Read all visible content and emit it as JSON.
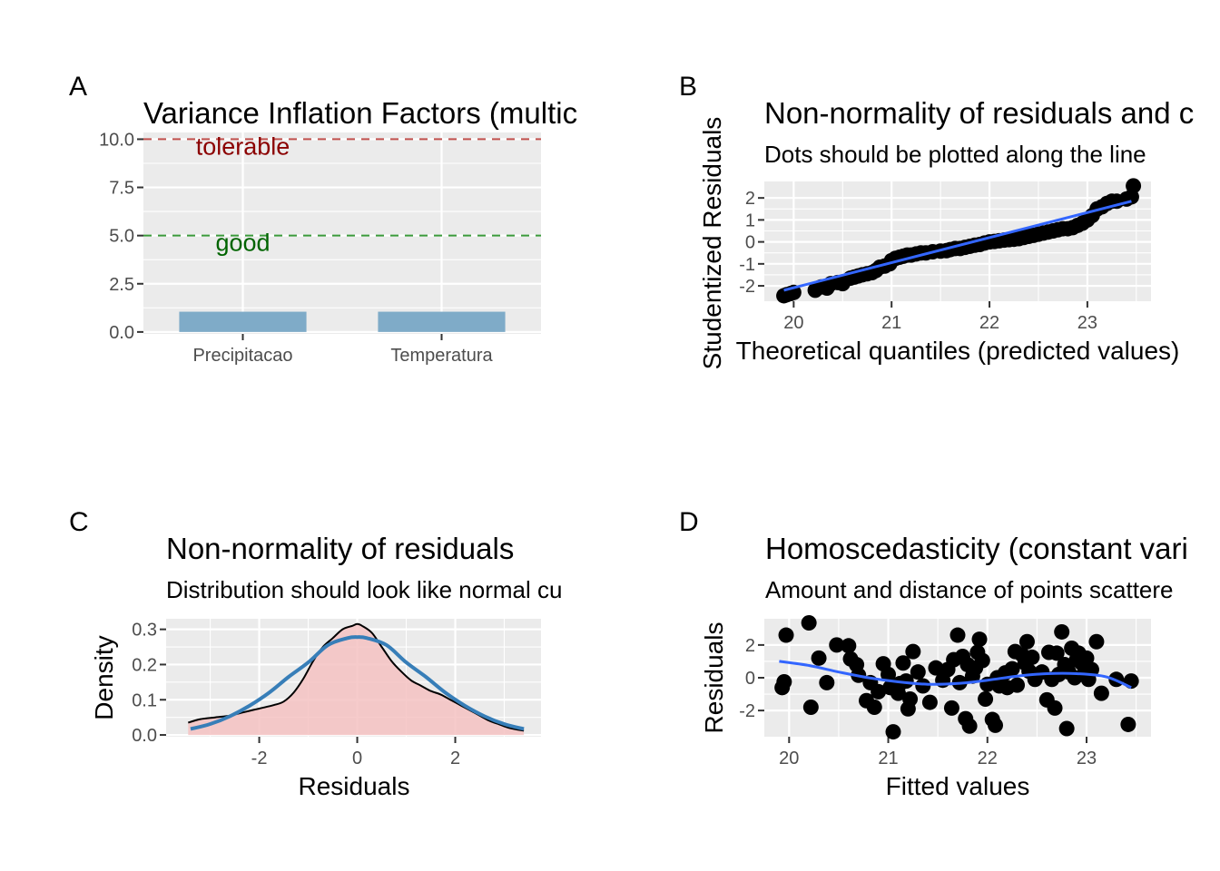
{
  "chart_data": [
    {
      "tag": "A",
      "type": "bar",
      "title": "Variance Inflation Factors (multic",
      "categories": [
        "Precipitacao",
        "Temperatura"
      ],
      "values": [
        1.05,
        1.05
      ],
      "ylim": [
        0,
        10
      ],
      "yticks": [
        0,
        2.5,
        5,
        7.5,
        10
      ],
      "ytick_labels": [
        "0.0",
        "2.5",
        "5.0",
        "7.5",
        "10.0"
      ],
      "grid": true,
      "reference_lines": [
        {
          "y": 10,
          "label": "tolerable",
          "color": "#c0504d",
          "text_color": "#8b0000"
        },
        {
          "y": 5,
          "label": "good",
          "color": "#3a9a3a",
          "text_color": "#006400"
        }
      ],
      "colors": {
        "bar": "#7fabc8"
      }
    },
    {
      "tag": "B",
      "type": "scatter",
      "title": "Non-normality of residuals and c",
      "subtitle": "Dots should be plotted along the line",
      "xlabel": "Theoretical quantiles (predicted values)",
      "ylabel": "Studentized Residuals",
      "xlim": [
        19.7,
        23.65
      ],
      "ylim": [
        -2.7,
        2.75
      ],
      "xticks": [
        20,
        21,
        22,
        23
      ],
      "xtick_labels": [
        "20",
        "21",
        "22",
        "23"
      ],
      "yticks": [
        -2,
        -1,
        0,
        1,
        2
      ],
      "ytick_labels": [
        "-2",
        "-1",
        "0",
        "1",
        "2"
      ],
      "grid": true,
      "fit_line": {
        "x": [
          19.9,
          23.45
        ],
        "y": [
          -2.2,
          1.85
        ],
        "color": "#3366ff"
      },
      "points": [
        [
          19.9,
          -2.45
        ],
        [
          19.93,
          -2.4
        ],
        [
          19.97,
          -2.35
        ],
        [
          20.0,
          -2.3
        ],
        [
          20.22,
          -2.2
        ],
        [
          20.28,
          -2.05
        ],
        [
          20.34,
          -2.1
        ],
        [
          20.38,
          -1.9
        ],
        [
          20.45,
          -1.85
        ],
        [
          20.5,
          -1.9
        ],
        [
          20.58,
          -1.65
        ],
        [
          20.62,
          -1.6
        ],
        [
          20.66,
          -1.55
        ],
        [
          20.7,
          -1.5
        ],
        [
          20.75,
          -1.45
        ],
        [
          20.8,
          -1.4
        ],
        [
          20.84,
          -1.3
        ],
        [
          20.88,
          -1.15
        ],
        [
          20.93,
          -1.1
        ],
        [
          20.98,
          -1.0
        ],
        [
          21.0,
          -0.85
        ],
        [
          21.04,
          -0.75
        ],
        [
          21.08,
          -0.7
        ],
        [
          21.12,
          -0.65
        ],
        [
          21.16,
          -0.6
        ],
        [
          21.2,
          -0.6
        ],
        [
          21.25,
          -0.55
        ],
        [
          21.3,
          -0.5
        ],
        [
          21.35,
          -0.5
        ],
        [
          21.42,
          -0.45
        ],
        [
          21.5,
          -0.42
        ],
        [
          21.56,
          -0.4
        ],
        [
          21.6,
          -0.35
        ],
        [
          21.65,
          -0.3
        ],
        [
          21.7,
          -0.3
        ],
        [
          21.75,
          -0.25
        ],
        [
          21.8,
          -0.2
        ],
        [
          21.85,
          -0.15
        ],
        [
          21.9,
          -0.12
        ],
        [
          21.95,
          -0.05
        ],
        [
          22.0,
          0.0
        ],
        [
          22.05,
          0.02
        ],
        [
          22.1,
          0.05
        ],
        [
          22.15,
          0.08
        ],
        [
          22.2,
          0.1
        ],
        [
          22.25,
          0.12
        ],
        [
          22.3,
          0.15
        ],
        [
          22.35,
          0.2
        ],
        [
          22.4,
          0.25
        ],
        [
          22.45,
          0.3
        ],
        [
          22.5,
          0.35
        ],
        [
          22.55,
          0.4
        ],
        [
          22.6,
          0.45
        ],
        [
          22.65,
          0.5
        ],
        [
          22.7,
          0.55
        ],
        [
          22.75,
          0.6
        ],
        [
          22.8,
          0.6
        ],
        [
          22.85,
          0.65
        ],
        [
          22.9,
          0.75
        ],
        [
          22.95,
          0.85
        ],
        [
          23.0,
          1.0
        ],
        [
          23.05,
          1.2
        ],
        [
          23.1,
          1.5
        ],
        [
          23.15,
          1.6
        ],
        [
          23.2,
          1.75
        ],
        [
          23.25,
          1.85
        ],
        [
          23.3,
          1.85
        ],
        [
          23.4,
          1.95
        ],
        [
          23.45,
          2.05
        ],
        [
          23.47,
          2.55
        ]
      ]
    },
    {
      "tag": "C",
      "type": "area",
      "title": "Non-normality of residuals",
      "subtitle": "Distribution should look like normal cu",
      "xlabel": "Residuals",
      "ylabel": "Density",
      "xlim": [
        -3.9,
        3.75
      ],
      "ylim": [
        -0.005,
        0.33
      ],
      "xticks": [
        -2,
        0,
        2
      ],
      "xtick_labels": [
        "-2",
        "0",
        "2"
      ],
      "yticks": [
        0,
        0.1,
        0.2,
        0.3
      ],
      "ytick_labels": [
        "0.0",
        "0.1",
        "0.2",
        "0.3"
      ],
      "grid": true,
      "series": [
        {
          "x": [
            -3.45,
            -3.2,
            -2.9,
            -2.6,
            -2.3,
            -2.0,
            -1.7,
            -1.5,
            -1.3,
            -1.1,
            -0.9,
            -0.7,
            -0.5,
            -0.3,
            -0.1,
            0.0,
            0.1,
            0.3,
            0.5,
            0.7,
            0.9,
            1.1,
            1.3,
            1.5,
            1.7,
            1.9,
            2.1,
            2.3,
            2.5,
            2.7,
            2.9,
            3.1,
            3.4
          ],
          "y": [
            0.035,
            0.045,
            0.05,
            0.055,
            0.065,
            0.075,
            0.085,
            0.095,
            0.12,
            0.16,
            0.21,
            0.25,
            0.275,
            0.3,
            0.31,
            0.315,
            0.31,
            0.29,
            0.25,
            0.21,
            0.18,
            0.155,
            0.14,
            0.125,
            0.115,
            0.1,
            0.085,
            0.07,
            0.055,
            0.04,
            0.03,
            0.02,
            0.012
          ],
          "color": "#000000",
          "fill": "#f4c2c2"
        },
        {
          "x": [
            -3.4,
            -3.0,
            -2.6,
            -2.2,
            -1.8,
            -1.4,
            -1.0,
            -0.6,
            -0.2,
            0.0,
            0.2,
            0.6,
            1.0,
            1.4,
            1.8,
            2.2,
            2.6,
            3.0,
            3.4
          ],
          "y": [
            0.017,
            0.031,
            0.053,
            0.083,
            0.12,
            0.165,
            0.206,
            0.255,
            0.275,
            0.278,
            0.275,
            0.255,
            0.206,
            0.165,
            0.12,
            0.083,
            0.053,
            0.031,
            0.017
          ],
          "color": "#377eb8"
        }
      ]
    },
    {
      "tag": "D",
      "type": "scatter",
      "title": "Homoscedasticity (constant vari",
      "subtitle": "Amount and distance of points scattere",
      "xlabel": "Fitted values",
      "ylabel": "Residuals",
      "xlim": [
        19.75,
        23.65
      ],
      "ylim": [
        -3.6,
        3.6
      ],
      "xticks": [
        20,
        21,
        22,
        23
      ],
      "xtick_labels": [
        "20",
        "21",
        "22",
        "23"
      ],
      "yticks": [
        -2,
        0,
        2
      ],
      "ytick_labels": [
        "-2",
        "0",
        "2"
      ],
      "grid": true,
      "smooth_line": {
        "x": [
          19.9,
          20.2,
          20.5,
          20.8,
          21.1,
          21.4,
          21.7,
          22.0,
          22.3,
          22.6,
          22.9,
          23.2,
          23.45
        ],
        "y": [
          1.0,
          0.75,
          0.35,
          0.0,
          -0.25,
          -0.4,
          -0.35,
          -0.15,
          0.1,
          0.25,
          0.25,
          0.05,
          -0.6
        ],
        "color": "#3366ff"
      },
      "points": [
        [
          19.93,
          -0.6
        ],
        [
          19.95,
          -0.25
        ],
        [
          19.97,
          2.6
        ],
        [
          20.2,
          3.35
        ],
        [
          20.22,
          -1.8
        ],
        [
          20.3,
          1.2
        ],
        [
          20.38,
          -0.3
        ],
        [
          20.48,
          2.0
        ],
        [
          20.6,
          1.95
        ],
        [
          20.62,
          1.15
        ],
        [
          20.68,
          0.8
        ],
        [
          20.7,
          0.15
        ],
        [
          20.78,
          -1.4
        ],
        [
          20.82,
          -0.3
        ],
        [
          20.86,
          -1.8
        ],
        [
          20.9,
          -0.85
        ],
        [
          20.95,
          0.85
        ],
        [
          21.0,
          0.2
        ],
        [
          21.02,
          -0.6
        ],
        [
          21.05,
          -3.3
        ],
        [
          21.1,
          -0.95
        ],
        [
          21.12,
          -0.35
        ],
        [
          21.15,
          0.9
        ],
        [
          21.18,
          -0.2
        ],
        [
          21.2,
          -1.9
        ],
        [
          21.22,
          -1.3
        ],
        [
          21.25,
          1.6
        ],
        [
          21.3,
          0.35
        ],
        [
          21.35,
          -0.5
        ],
        [
          21.42,
          -1.5
        ],
        [
          21.48,
          0.6
        ],
        [
          21.55,
          -0.15
        ],
        [
          21.6,
          0.5
        ],
        [
          21.64,
          -1.85
        ],
        [
          21.66,
          1.1
        ],
        [
          21.7,
          2.6
        ],
        [
          21.72,
          -0.3
        ],
        [
          21.75,
          1.3
        ],
        [
          21.78,
          -2.5
        ],
        [
          21.8,
          0.8
        ],
        [
          21.82,
          -2.95
        ],
        [
          21.85,
          0.1
        ],
        [
          21.88,
          0.6
        ],
        [
          21.9,
          1.55
        ],
        [
          21.92,
          2.35
        ],
        [
          21.95,
          1.05
        ],
        [
          21.98,
          -1.3
        ],
        [
          22.0,
          -0.4
        ],
        [
          22.05,
          -2.55
        ],
        [
          22.08,
          -2.9
        ],
        [
          22.1,
          0.0
        ],
        [
          22.12,
          -0.5
        ],
        [
          22.18,
          0.3
        ],
        [
          22.2,
          -0.6
        ],
        [
          22.25,
          0.55
        ],
        [
          22.28,
          1.6
        ],
        [
          22.3,
          -0.45
        ],
        [
          22.35,
          1.4
        ],
        [
          22.38,
          0.9
        ],
        [
          22.4,
          2.2
        ],
        [
          22.42,
          0.4
        ],
        [
          22.45,
          1.25
        ],
        [
          22.48,
          -0.1
        ],
        [
          22.55,
          0.35
        ],
        [
          22.6,
          -1.35
        ],
        [
          22.62,
          1.55
        ],
        [
          22.65,
          -0.1
        ],
        [
          22.68,
          -1.85
        ],
        [
          22.7,
          1.5
        ],
        [
          22.72,
          0.2
        ],
        [
          22.75,
          2.8
        ],
        [
          22.78,
          0.8
        ],
        [
          22.8,
          -3.1
        ],
        [
          22.82,
          0.35
        ],
        [
          22.85,
          1.8
        ],
        [
          22.88,
          0.0
        ],
        [
          22.9,
          1.1
        ],
        [
          22.92,
          1.5
        ],
        [
          22.95,
          0.9
        ],
        [
          22.98,
          0.3
        ],
        [
          23.0,
          1.2
        ],
        [
          23.02,
          -0.1
        ],
        [
          23.05,
          0.5
        ],
        [
          23.1,
          2.2
        ],
        [
          23.15,
          -0.95
        ],
        [
          23.3,
          -0.1
        ],
        [
          23.42,
          -2.85
        ],
        [
          23.45,
          -0.2
        ]
      ]
    }
  ]
}
